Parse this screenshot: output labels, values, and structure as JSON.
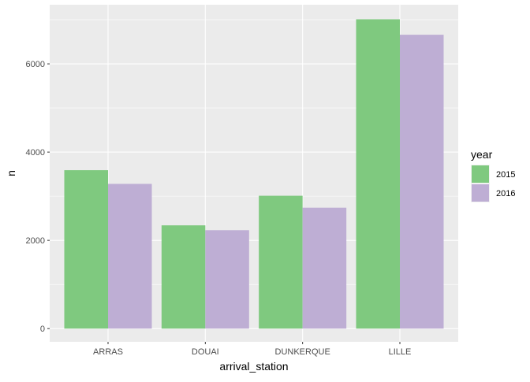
{
  "chart_data": {
    "type": "bar",
    "title": "",
    "xlabel": "arrival_station",
    "ylabel": "n",
    "categories": [
      "ARRAS",
      "DOUAI",
      "DUNKERQUE",
      "LILLE"
    ],
    "series": [
      {
        "name": "2015",
        "color": "#7fc97f",
        "values": [
          3590,
          2340,
          3010,
          7010
        ]
      },
      {
        "name": "2016",
        "color": "#beaed4",
        "values": [
          3280,
          2230,
          2740,
          6660
        ]
      }
    ],
    "ylim": [
      -300,
      7340
    ],
    "yticks": [
      0,
      2000,
      4000,
      6000
    ],
    "ytick_labels": [
      "0",
      "2000",
      "4000",
      "6000"
    ],
    "legend": {
      "title": "year",
      "position": "right"
    },
    "grid": true,
    "panel_background": "#ebebeb",
    "grid_color": "#ffffff"
  }
}
